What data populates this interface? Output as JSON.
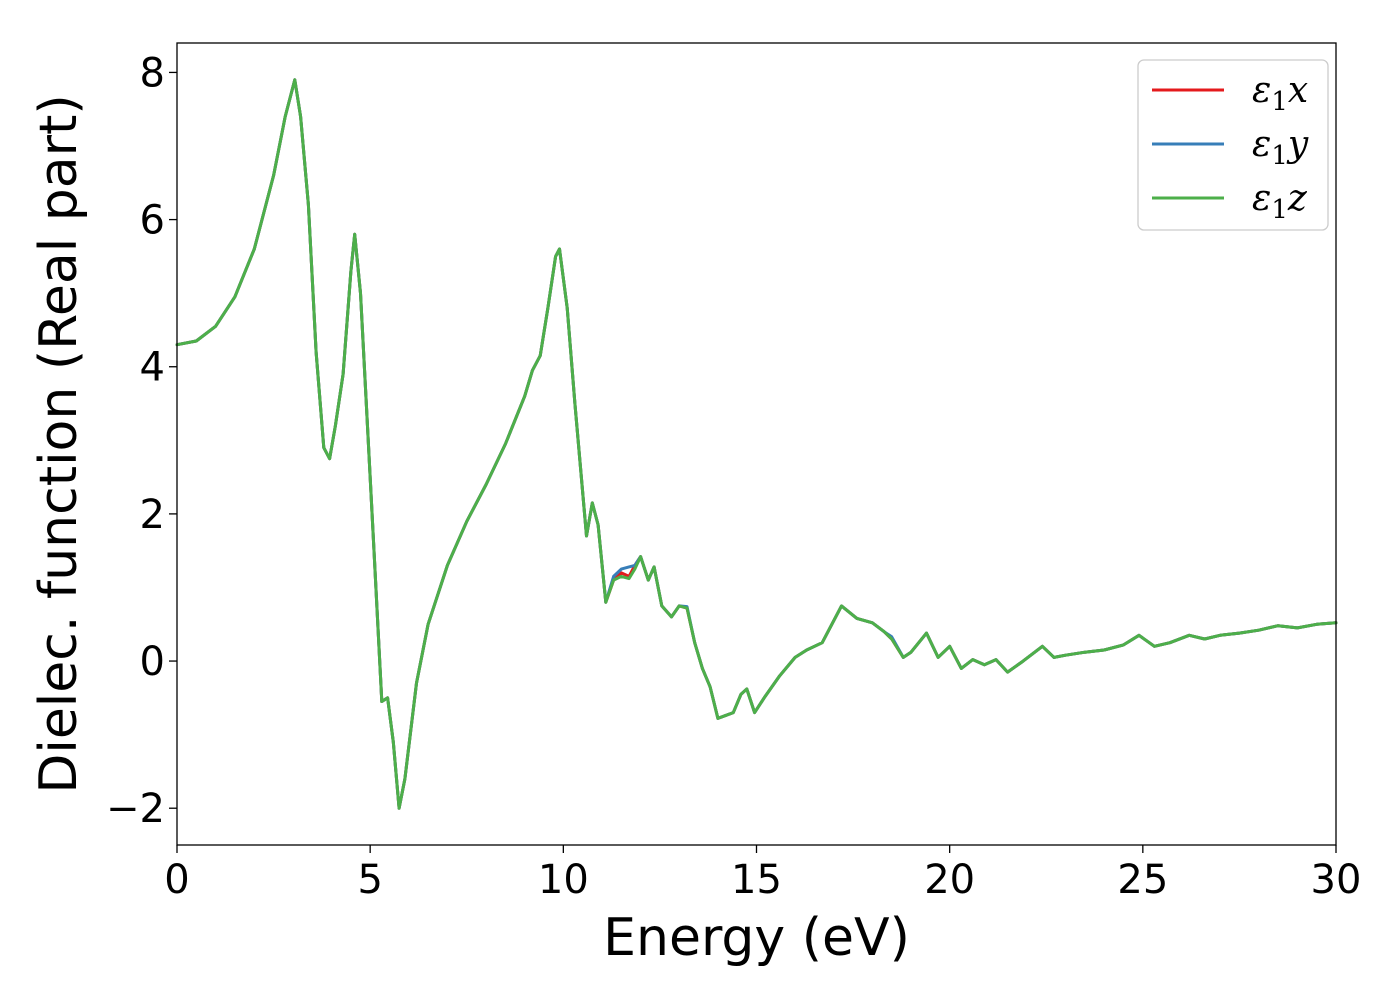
{
  "chart_data": {
    "type": "line",
    "title": "",
    "xlabel": "Energy (eV)",
    "ylabel": "Dielec. function (Real part)",
    "xlim": [
      0,
      30
    ],
    "ylim": [
      -2.5,
      8.4
    ],
    "xticks": [
      0,
      5,
      10,
      15,
      20,
      25,
      30
    ],
    "xtick_labels": [
      "0",
      "5",
      "10",
      "15",
      "20",
      "25",
      "30"
    ],
    "yticks": [
      -2,
      0,
      2,
      4,
      6,
      8
    ],
    "ytick_labels": [
      "−2",
      "0",
      "2",
      "4",
      "6",
      "8"
    ],
    "grid": false,
    "legend_position": "top-right",
    "series": [
      {
        "name": "x",
        "symbol": "ε",
        "subscript": "1",
        "color": "#e41a1c",
        "x": [
          0,
          0.5,
          1,
          1.5,
          2,
          2.5,
          2.8,
          3.05,
          3.2,
          3.4,
          3.6,
          3.8,
          3.95,
          4.1,
          4.3,
          4.5,
          4.6,
          4.75,
          4.9,
          5.1,
          5.3,
          5.45,
          5.6,
          5.75,
          5.9,
          6.2,
          6.5,
          7,
          7.5,
          8,
          8.5,
          9,
          9.2,
          9.4,
          9.6,
          9.8,
          9.9,
          10.1,
          10.3,
          10.6,
          10.75,
          10.9,
          11.1,
          11.3,
          11.5,
          11.7,
          11.85,
          12.0,
          12.2,
          12.35,
          12.55,
          12.8,
          13.0,
          13.2,
          13.4,
          13.6,
          13.8,
          14.0,
          14.15,
          14.4,
          14.6,
          14.75,
          14.95,
          15.2,
          15.6,
          16.0,
          16.3,
          16.7,
          17.2,
          17.6,
          18.0,
          18.3,
          18.5,
          18.8,
          19.0,
          19.4,
          19.7,
          20.0,
          20.3,
          20.6,
          20.9,
          21.2,
          21.5,
          21.9,
          22.4,
          22.7,
          23.0,
          23.5,
          24,
          24.5,
          24.9,
          25.3,
          25.7,
          26.2,
          26.6,
          27,
          27.5,
          28,
          28.5,
          29,
          29.5,
          30
        ],
        "y": [
          4.3,
          4.35,
          4.55,
          4.95,
          5.6,
          6.6,
          7.4,
          7.9,
          7.4,
          6.2,
          4.2,
          2.9,
          2.75,
          3.2,
          3.9,
          5.3,
          5.8,
          5.0,
          3.5,
          1.5,
          -0.55,
          -0.5,
          -1.1,
          -2.0,
          -1.6,
          -0.3,
          0.5,
          1.3,
          1.9,
          2.4,
          2.95,
          3.6,
          3.95,
          4.15,
          4.8,
          5.5,
          5.6,
          4.8,
          3.5,
          1.7,
          2.15,
          1.85,
          0.8,
          1.1,
          1.2,
          1.15,
          1.3,
          1.42,
          1.1,
          1.28,
          0.75,
          0.6,
          0.75,
          0.72,
          0.25,
          -0.1,
          -0.35,
          -0.78,
          -0.75,
          -0.7,
          -0.45,
          -0.38,
          -0.7,
          -0.5,
          -0.2,
          0.05,
          0.15,
          0.25,
          0.75,
          0.58,
          0.52,
          0.4,
          0.3,
          0.05,
          0.12,
          0.38,
          0.05,
          0.2,
          -0.1,
          0.02,
          -0.05,
          0.02,
          -0.15,
          0.0,
          0.2,
          0.05,
          0.08,
          0.12,
          0.15,
          0.22,
          0.35,
          0.2,
          0.25,
          0.35,
          0.3,
          0.35,
          0.38,
          0.42,
          0.48,
          0.45,
          0.5,
          0.52
        ]
      },
      {
        "name": "y",
        "symbol": "ε",
        "subscript": "1",
        "color": "#377eb8",
        "x": [
          0,
          0.5,
          1,
          1.5,
          2,
          2.5,
          2.8,
          3.05,
          3.2,
          3.4,
          3.6,
          3.8,
          3.95,
          4.1,
          4.3,
          4.5,
          4.6,
          4.75,
          4.9,
          5.1,
          5.3,
          5.45,
          5.6,
          5.75,
          5.9,
          6.2,
          6.5,
          7,
          7.5,
          8,
          8.5,
          9,
          9.2,
          9.4,
          9.6,
          9.8,
          9.9,
          10.1,
          10.3,
          10.6,
          10.75,
          10.9,
          11.1,
          11.3,
          11.5,
          11.7,
          11.85,
          12.0,
          12.2,
          12.35,
          12.55,
          12.8,
          13.0,
          13.2,
          13.4,
          13.6,
          13.8,
          14.0,
          14.15,
          14.4,
          14.6,
          14.75,
          14.95,
          15.2,
          15.6,
          16.0,
          16.3,
          16.7,
          17.2,
          17.6,
          18.0,
          18.3,
          18.5,
          18.8,
          19.0,
          19.4,
          19.7,
          20.0,
          20.3,
          20.6,
          20.9,
          21.2,
          21.5,
          21.9,
          22.4,
          22.7,
          23.0,
          23.5,
          24,
          24.5,
          24.9,
          25.3,
          25.7,
          26.2,
          26.6,
          27,
          27.5,
          28,
          28.5,
          29,
          29.5,
          30
        ],
        "y": [
          4.3,
          4.35,
          4.55,
          4.95,
          5.6,
          6.6,
          7.4,
          7.9,
          7.4,
          6.2,
          4.2,
          2.9,
          2.75,
          3.2,
          3.9,
          5.3,
          5.8,
          5.0,
          3.5,
          1.5,
          -0.55,
          -0.5,
          -1.1,
          -2.0,
          -1.6,
          -0.3,
          0.5,
          1.3,
          1.9,
          2.4,
          2.95,
          3.6,
          3.95,
          4.15,
          4.8,
          5.5,
          5.6,
          4.8,
          3.5,
          1.7,
          2.15,
          1.85,
          0.8,
          1.15,
          1.25,
          1.28,
          1.3,
          1.42,
          1.1,
          1.28,
          0.75,
          0.6,
          0.75,
          0.74,
          0.25,
          -0.1,
          -0.35,
          -0.78,
          -0.75,
          -0.7,
          -0.45,
          -0.38,
          -0.7,
          -0.5,
          -0.2,
          0.05,
          0.15,
          0.25,
          0.75,
          0.58,
          0.52,
          0.4,
          0.33,
          0.05,
          0.12,
          0.38,
          0.05,
          0.2,
          -0.1,
          0.02,
          -0.05,
          0.02,
          -0.15,
          0.0,
          0.2,
          0.05,
          0.08,
          0.12,
          0.15,
          0.22,
          0.35,
          0.2,
          0.25,
          0.35,
          0.3,
          0.35,
          0.38,
          0.42,
          0.48,
          0.45,
          0.5,
          0.52
        ]
      },
      {
        "name": "z",
        "symbol": "ε",
        "subscript": "1",
        "color": "#4daf4a",
        "x": [
          0,
          0.5,
          1,
          1.5,
          2,
          2.5,
          2.8,
          3.05,
          3.2,
          3.4,
          3.6,
          3.8,
          3.95,
          4.1,
          4.3,
          4.5,
          4.6,
          4.75,
          4.9,
          5.1,
          5.3,
          5.45,
          5.6,
          5.75,
          5.9,
          6.2,
          6.5,
          7,
          7.5,
          8,
          8.5,
          9,
          9.2,
          9.4,
          9.6,
          9.8,
          9.9,
          10.1,
          10.3,
          10.6,
          10.75,
          10.9,
          11.1,
          11.3,
          11.5,
          11.7,
          11.85,
          12.0,
          12.2,
          12.35,
          12.55,
          12.8,
          13.0,
          13.2,
          13.4,
          13.6,
          13.8,
          14.0,
          14.15,
          14.4,
          14.6,
          14.75,
          14.95,
          15.2,
          15.6,
          16.0,
          16.3,
          16.7,
          17.2,
          17.6,
          18.0,
          18.3,
          18.5,
          18.8,
          19.0,
          19.4,
          19.7,
          20.0,
          20.3,
          20.6,
          20.9,
          21.2,
          21.5,
          21.9,
          22.4,
          22.7,
          23.0,
          23.5,
          24,
          24.5,
          24.9,
          25.3,
          25.7,
          26.2,
          26.6,
          27,
          27.5,
          28,
          28.5,
          29,
          29.5,
          30
        ],
        "y": [
          4.3,
          4.35,
          4.55,
          4.95,
          5.6,
          6.6,
          7.4,
          7.9,
          7.4,
          6.2,
          4.2,
          2.9,
          2.75,
          3.2,
          3.9,
          5.3,
          5.8,
          5.0,
          3.5,
          1.5,
          -0.55,
          -0.5,
          -1.1,
          -2.0,
          -1.6,
          -0.3,
          0.5,
          1.3,
          1.9,
          2.4,
          2.95,
          3.6,
          3.95,
          4.15,
          4.8,
          5.5,
          5.6,
          4.8,
          3.5,
          1.7,
          2.15,
          1.85,
          0.8,
          1.1,
          1.15,
          1.12,
          1.25,
          1.42,
          1.1,
          1.28,
          0.75,
          0.6,
          0.75,
          0.72,
          0.25,
          -0.1,
          -0.35,
          -0.78,
          -0.75,
          -0.7,
          -0.45,
          -0.38,
          -0.7,
          -0.5,
          -0.2,
          0.05,
          0.15,
          0.25,
          0.75,
          0.58,
          0.52,
          0.4,
          0.3,
          0.05,
          0.12,
          0.38,
          0.05,
          0.2,
          -0.1,
          0.02,
          -0.05,
          0.02,
          -0.15,
          0.0,
          0.2,
          0.05,
          0.08,
          0.12,
          0.15,
          0.22,
          0.35,
          0.2,
          0.25,
          0.35,
          0.3,
          0.35,
          0.38,
          0.42,
          0.48,
          0.45,
          0.5,
          0.52
        ]
      }
    ]
  }
}
